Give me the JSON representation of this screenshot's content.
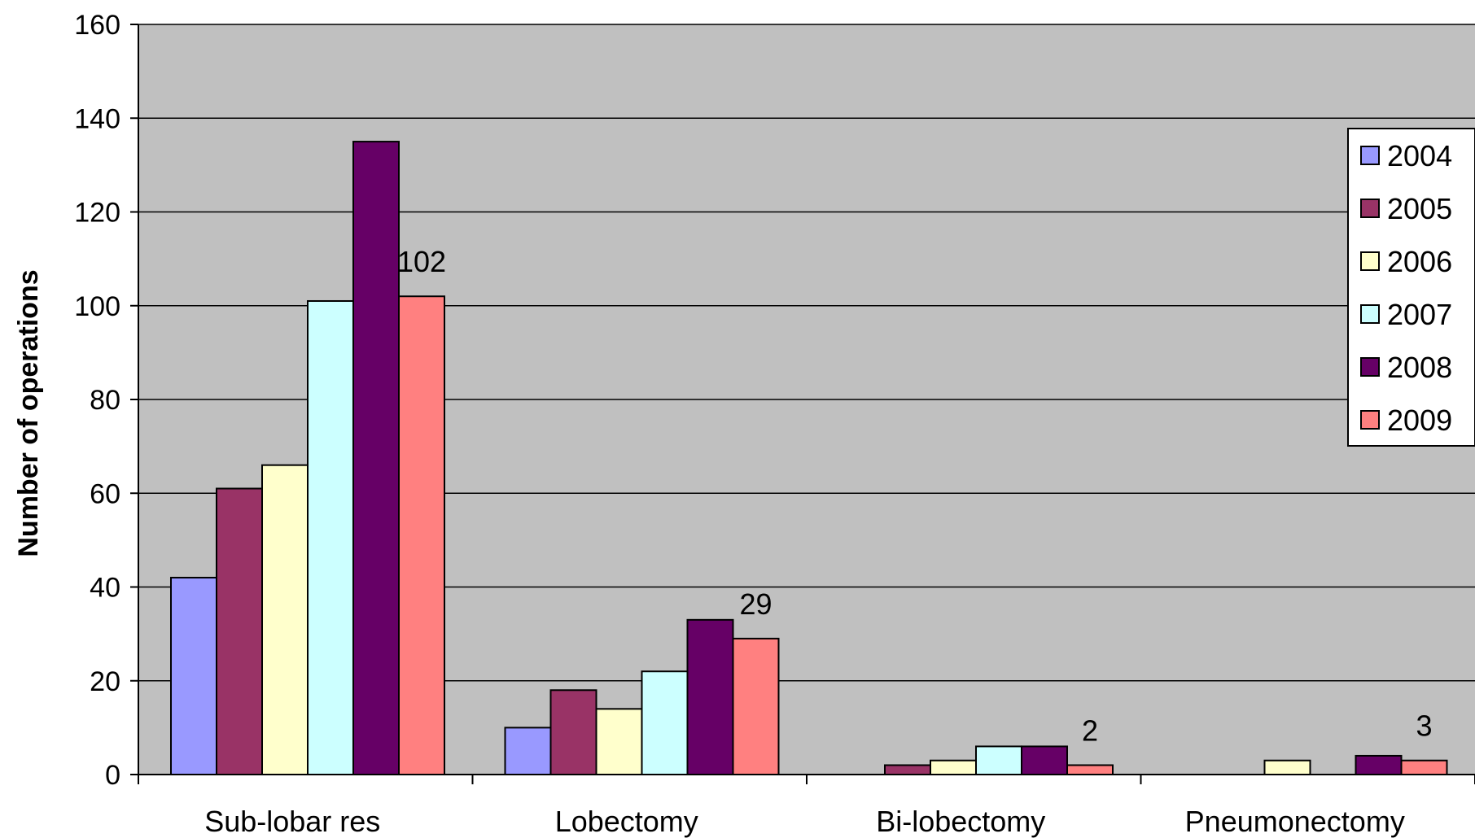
{
  "chart_data": {
    "type": "bar",
    "title": "",
    "xlabel": "",
    "ylabel": "Number of operations",
    "ylim": [
      0,
      160
    ],
    "yticks": [
      0,
      20,
      40,
      60,
      80,
      100,
      120,
      140,
      160
    ],
    "grid": true,
    "legend_position": "right",
    "plot_background": "#c0c0c0",
    "categories": [
      "Sub-lobar res",
      "Lobectomy",
      "Bi-lobectomy",
      "Pneumonectomy"
    ],
    "series": [
      {
        "name": "2004",
        "color": "#9999ff",
        "values": [
          42,
          10,
          0,
          0
        ]
      },
      {
        "name": "2005",
        "color": "#993366",
        "values": [
          61,
          18,
          2,
          0
        ]
      },
      {
        "name": "2006",
        "color": "#ffffcc",
        "values": [
          66,
          14,
          3,
          3
        ]
      },
      {
        "name": "2007",
        "color": "#ccffff",
        "values": [
          101,
          22,
          6,
          0
        ]
      },
      {
        "name": "2008",
        "color": "#660066",
        "values": [
          135,
          33,
          6,
          4
        ]
      },
      {
        "name": "2009",
        "color": "#ff8080",
        "values": [
          102,
          29,
          2,
          3
        ]
      }
    ],
    "data_labels": [
      {
        "category": "Sub-lobar res",
        "series": "2009",
        "text": "102"
      },
      {
        "category": "Lobectomy",
        "series": "2009",
        "text": "29"
      },
      {
        "category": "Bi-lobectomy",
        "series": "2009",
        "text": "2"
      },
      {
        "category": "Pneumonectomy",
        "series": "2009",
        "text": "3"
      }
    ]
  }
}
